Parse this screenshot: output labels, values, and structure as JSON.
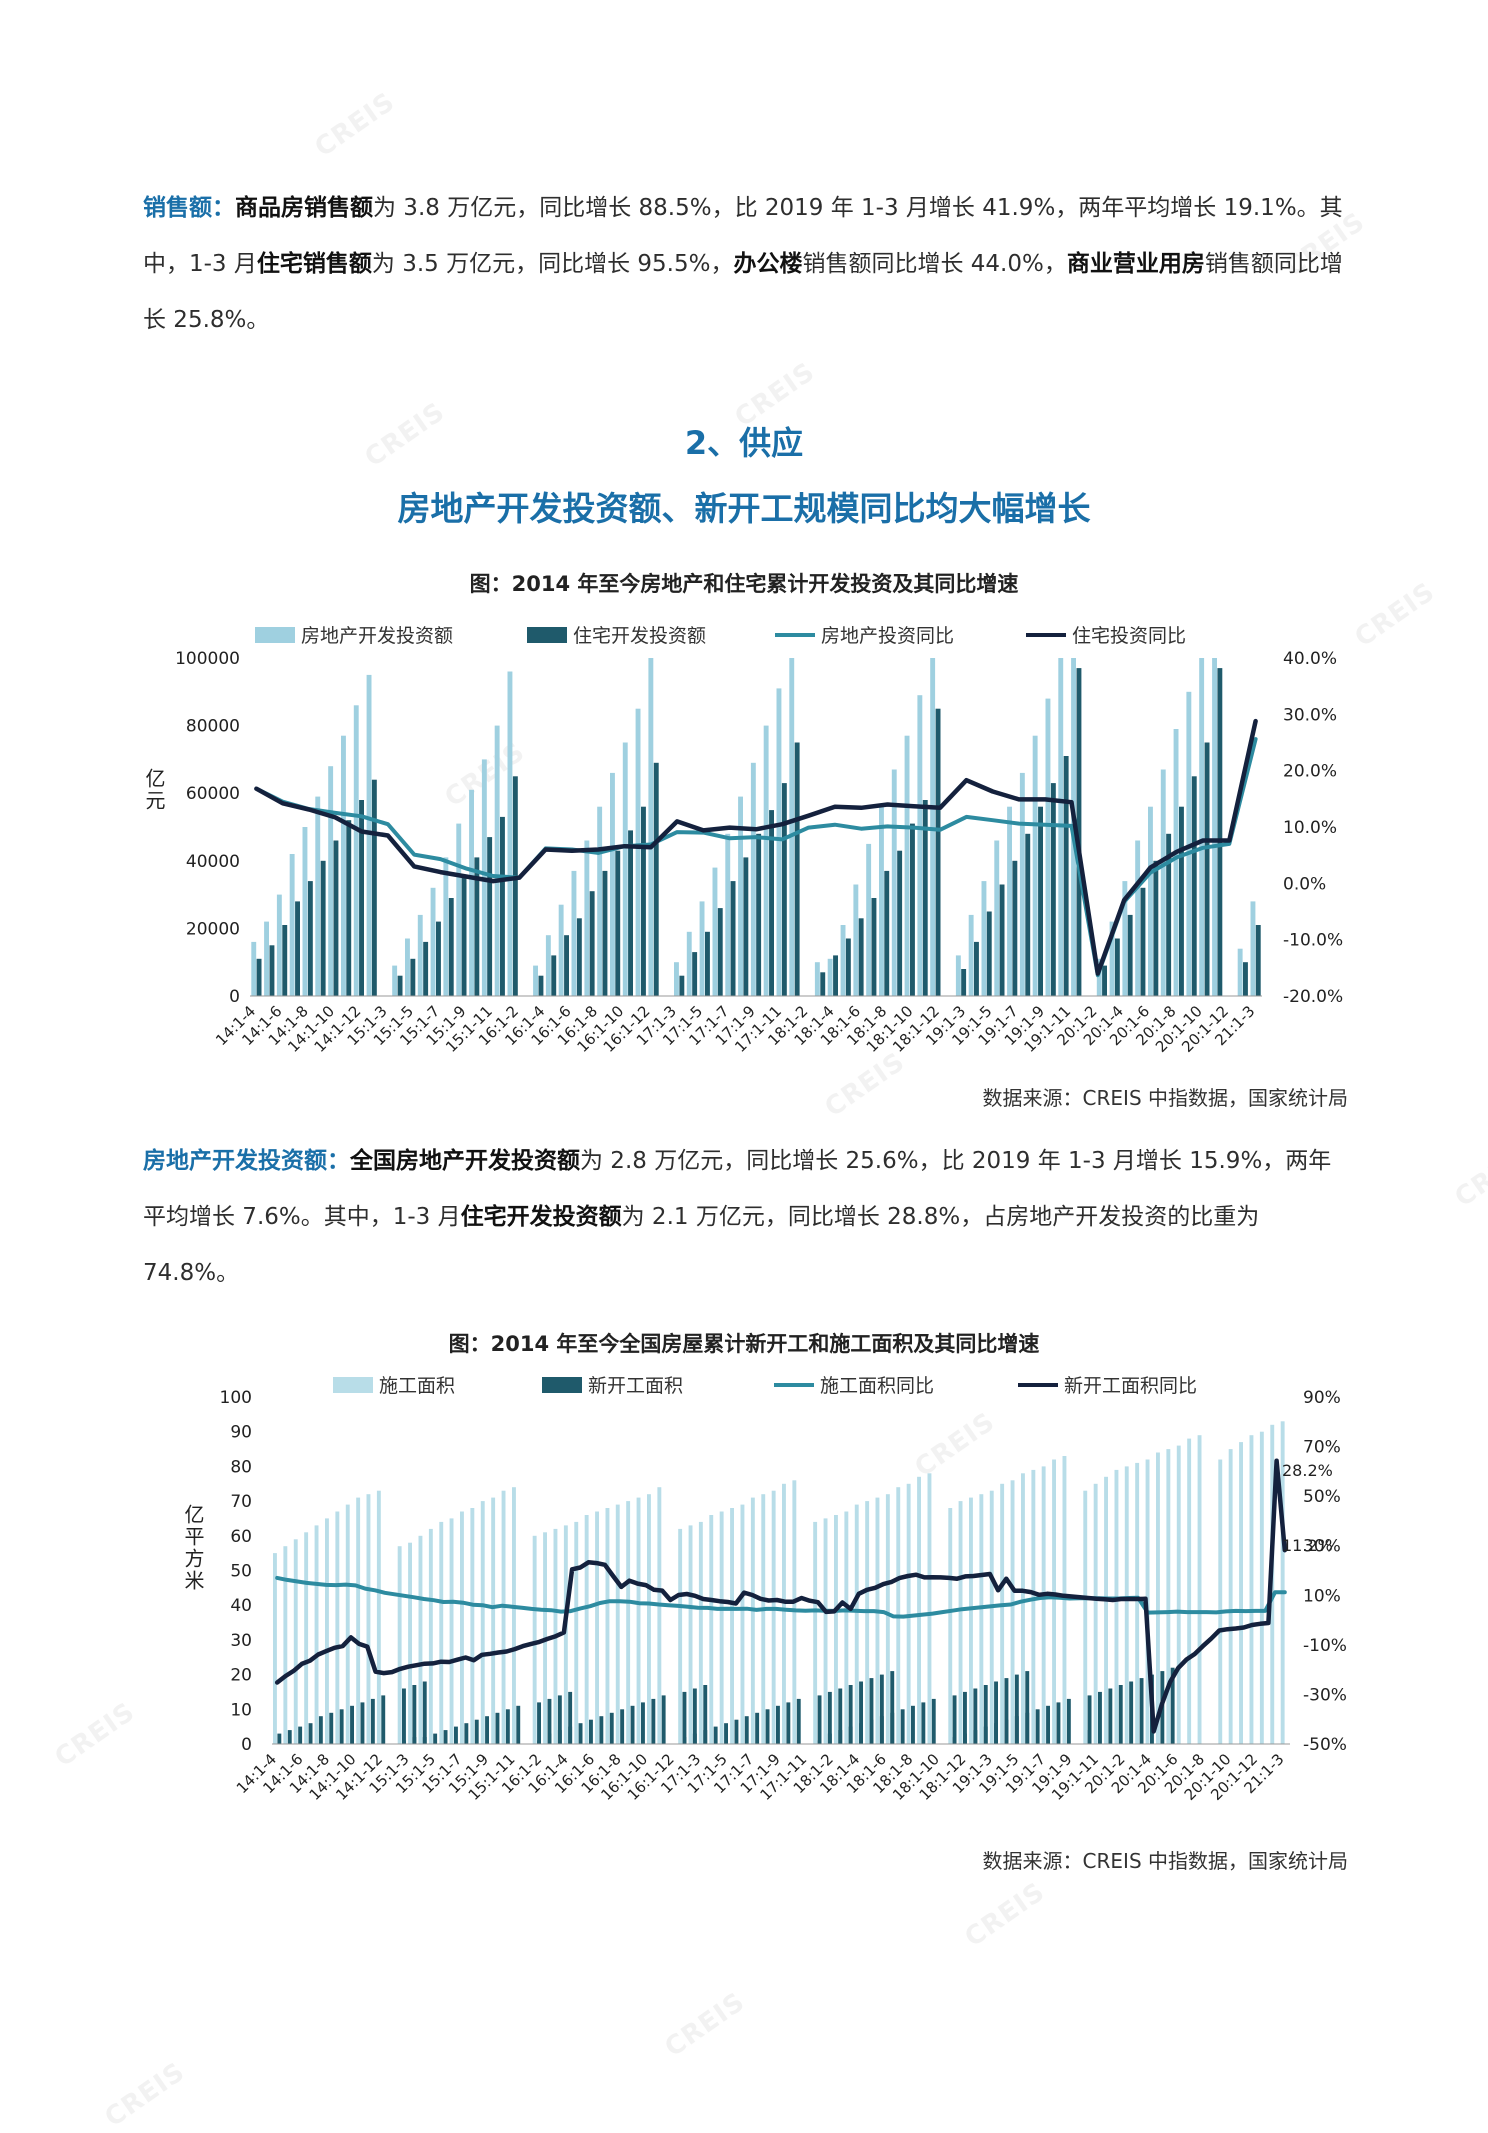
{
  "intro": {
    "lead": "销售额：",
    "t1": "商品房销售额",
    "t2": "为 3.8 万亿元，同比增长 88.5%，比 2019 年 1-3 月增长 41.9%，两年平均增长 19.1%。其中，1-3 月",
    "t3": "住宅销售额",
    "t4": "为 3.5 万亿元，同比增长 95.5%，",
    "t5": "办公楼",
    "t6": "销售额同比增长 44.0%，",
    "t7": "商业营业用房",
    "t8": "销售额同比增长 25.8%。"
  },
  "section": {
    "number": "2、供应",
    "headline": "房地产开发投资额、新开工规模同比均大幅增长"
  },
  "middle": {
    "lead": "房地产开发投资额：",
    "t1": "全国房地产开发投资额",
    "t2": "为 2.8 万亿元，同比增长 25.6%，比 2019 年 1-3 月增长 15.9%，两年平均增长 7.6%。其中，1-3 月",
    "t3": "住宅开发投资额",
    "t4": "为 2.1 万亿元，同比增长 28.8%，占房地产开发投资的比重为 74.8%。"
  },
  "watermark": "CREIS",
  "chart_data": [
    {
      "type": "bar",
      "title": "图：2014 年至今房地产和住宅累计开发投资及其同比增速",
      "source": "数据来源：CREIS 中指数据，国家统计局",
      "ylabel": "亿元",
      "ylim": [
        0,
        100000
      ],
      "y2lim": [
        -20,
        40
      ],
      "yticks": [
        "100000",
        "80000",
        "60000",
        "40000",
        "20000",
        "0"
      ],
      "y2ticks": [
        "40.0%",
        "30.0%",
        "20.0%",
        "10.0%",
        "0.0%",
        "-10.0%",
        "-20.0%"
      ],
      "xtick_labels": [
        "14:1-4",
        "14:1-6",
        "14:1-8",
        "14:1-10",
        "14:1-12",
        "15:1-3",
        "15:1-5",
        "15:1-7",
        "15:1-9",
        "15:1-11",
        "16:1-2",
        "16:1-4",
        "16:1-6",
        "16:1-8",
        "16:1-10",
        "16:1-12",
        "17:1-3",
        "17:1-5",
        "17:1-7",
        "17:1-9",
        "17:1-11",
        "18:1-2",
        "18:1-4",
        "18:1-6",
        "18:1-8",
        "18:1-10",
        "18:1-12",
        "19:1-3",
        "19:1-5",
        "19:1-7",
        "19:1-9",
        "19:1-11",
        "20:1-2",
        "20:1-4",
        "20:1-6",
        "20:1-8",
        "20:1-10",
        "20:1-12",
        "21:1-3"
      ],
      "grid": false,
      "legend_position": "top",
      "series": [
        {
          "name": "房地产开发投资额",
          "kind": "bar",
          "axis": "left",
          "color": "#9fd0e0",
          "years": [
            [
              16000,
              22000,
              30000,
              42000,
              50000,
              59000,
              68000,
              77000,
              86000,
              95000
            ],
            [
              9000,
              17000,
              24000,
              32000,
              41000,
              51000,
              61000,
              70000,
              80000,
              96000
            ],
            [
              9000,
              18000,
              27000,
              37000,
              46000,
              56000,
              66000,
              75000,
              85000,
              100000
            ],
            [
              10000,
              19000,
              28000,
              38000,
              48000,
              59000,
              69000,
              80000,
              91000,
              100000
            ],
            [
              10000,
              11000,
              21000,
              33000,
              45000,
              56000,
              67000,
              77000,
              89000,
              100000
            ],
            [
              12000,
              24000,
              34000,
              46000,
              56000,
              66000,
              77000,
              88000,
              100000,
              100000
            ],
            [
              11000,
              22000,
              34000,
              46000,
              56000,
              67000,
              79000,
              90000,
              100000,
              100000
            ],
            [
              14000,
              28000
            ]
          ]
        },
        {
          "name": "住宅开发投资额",
          "kind": "bar",
          "axis": "left",
          "color": "#1f5a6b",
          "years": [
            [
              11000,
              15000,
              21000,
              28000,
              34000,
              40000,
              46000,
              52000,
              58000,
              64000
            ],
            [
              6000,
              11000,
              16000,
              22000,
              29000,
              35000,
              41000,
              47000,
              53000,
              65000
            ],
            [
              6000,
              12000,
              18000,
              23000,
              31000,
              37000,
              43000,
              49000,
              56000,
              69000
            ],
            [
              6000,
              13000,
              19000,
              26000,
              34000,
              41000,
              48000,
              55000,
              63000,
              75000
            ],
            [
              7000,
              12000,
              17000,
              23000,
              29000,
              37000,
              43000,
              51000,
              58000,
              85000
            ],
            [
              8000,
              16000,
              25000,
              33000,
              40000,
              48000,
              56000,
              63000,
              71000,
              97000
            ],
            [
              9000,
              17000,
              24000,
              32000,
              40000,
              48000,
              56000,
              65000,
              75000,
              97000
            ],
            [
              10000,
              21000
            ]
          ]
        },
        {
          "name": "房地产投资同比",
          "kind": "line",
          "axis": "right",
          "color": "#2d8ba0",
          "x_index": [
            0,
            1,
            2,
            3,
            4,
            5,
            6,
            7,
            8,
            9,
            10,
            11,
            12,
            13,
            14,
            15,
            16,
            17,
            18,
            19,
            20,
            21,
            22,
            23,
            24,
            25,
            26,
            27,
            28,
            29,
            30,
            31,
            32,
            33,
            34,
            35,
            36,
            37,
            38
          ],
          "values": [
            16.8,
            14.5,
            13.2,
            12.5,
            11.9,
            10.5,
            5.1,
            4.3,
            2.6,
            1.3,
            1.0,
            6.2,
            6.0,
            5.4,
            6.6,
            6.9,
            9.1,
            9.0,
            8.0,
            8.2,
            7.8,
            9.9,
            10.4,
            9.7,
            10.1,
            9.9,
            9.5,
            11.8,
            11.2,
            10.6,
            10.4,
            10.2,
            -16.3,
            -3.3,
            1.9,
            4.6,
            6.3,
            7.0,
            25.6
          ]
        },
        {
          "name": "住宅投资同比",
          "kind": "line",
          "axis": "right",
          "color": "#14213d",
          "x_index": [
            0,
            1,
            2,
            3,
            4,
            5,
            6,
            7,
            8,
            9,
            10,
            11,
            12,
            13,
            14,
            15,
            16,
            17,
            18,
            19,
            20,
            21,
            22,
            23,
            24,
            25,
            26,
            27,
            28,
            29,
            30,
            31,
            32,
            33,
            34,
            35,
            36,
            37,
            38
          ],
          "values": [
            16.8,
            14.2,
            13.1,
            11.7,
            9.2,
            8.5,
            3.0,
            2.0,
            1.2,
            0.4,
            1.0,
            6.0,
            5.8,
            6.0,
            6.6,
            6.4,
            11.0,
            9.4,
            9.9,
            9.6,
            10.5,
            12.0,
            13.6,
            13.4,
            14.0,
            13.7,
            13.4,
            18.3,
            16.3,
            14.9,
            14.9,
            14.4,
            -16.0,
            -3.0,
            2.8,
            5.6,
            7.6,
            7.6,
            28.8
          ]
        }
      ]
    },
    {
      "type": "bar",
      "title": "图：2014 年至今全国房屋累计新开工和施工面积及其同比增速",
      "source": "数据来源：CREIS 中指数据，国家统计局",
      "ylabel": "亿平方米",
      "ylim": [
        0,
        100
      ],
      "y2lim": [
        -50,
        90
      ],
      "yticks": [
        "100",
        "90",
        "80",
        "70",
        "60",
        "50",
        "40",
        "30",
        "20",
        "10",
        "0"
      ],
      "y2ticks": [
        "90%",
        "70%",
        "50%",
        "30%",
        "10%",
        "-10%",
        "-30%",
        "-50%"
      ],
      "xtick_labels": [
        "14:1-4",
        "14:1-6",
        "14:1-8",
        "14:1-10",
        "14:1-12",
        "15:1-3",
        "15:1-5",
        "15:1-7",
        "15:1-9",
        "15:1-11",
        "16:1-2",
        "16:1-4",
        "16:1-6",
        "16:1-8",
        "16:1-10",
        "16:1-12",
        "17:1-3",
        "17:1-5",
        "17:1-7",
        "17:1-9",
        "17:1-11",
        "18:1-2",
        "18:1-4",
        "18:1-6",
        "18:1-8",
        "18:1-10",
        "18:1-12",
        "19:1-3",
        "19:1-5",
        "19:1-7",
        "19:1-9",
        "19:1-11",
        "20:1-2",
        "20:1-4",
        "20:1-6",
        "20:1-8",
        "20:1-10",
        "20:1-12",
        "21:1-3"
      ],
      "annotations": [
        "28.2%",
        "11.2%"
      ],
      "grid": false,
      "legend_position": "top",
      "series": [
        {
          "name": "施工面积",
          "kind": "bar",
          "axis": "left",
          "color": "#b8dde8",
          "years": [
            [
              55,
              57,
              59,
              61,
              63,
              65,
              67,
              69,
              71,
              72,
              73
            ],
            [
              57,
              58,
              60,
              62,
              64,
              65,
              67,
              68,
              70,
              71,
              73,
              74
            ],
            [
              60,
              61,
              62,
              63,
              64,
              66,
              67,
              68,
              69,
              70,
              71,
              72,
              74
            ],
            [
              62,
              63,
              64,
              66,
              67,
              68,
              69,
              71,
              72,
              73,
              75,
              76
            ],
            [
              64,
              65,
              66,
              67,
              69,
              70,
              71,
              72,
              74,
              75,
              77,
              78
            ],
            [
              68,
              70,
              71,
              72,
              73,
              75,
              76,
              78,
              79,
              80,
              82,
              83
            ],
            [
              73,
              75,
              77,
              79,
              80,
              81,
              82,
              84,
              85,
              86,
              88,
              89
            ],
            [
              82,
              85,
              87,
              89,
              90,
              92,
              93
            ]
          ]
        },
        {
          "name": "新开工面积",
          "kind": "bar",
          "axis": "left",
          "color": "#1f5a6b",
          "years": [
            [
              3,
              4,
              5,
              6,
              8,
              9,
              10,
              11,
              12,
              13,
              14,
              16,
              17,
              18
            ],
            [
              1,
              2,
              2,
              3,
              4,
              5,
              6,
              7,
              8,
              9,
              10,
              11,
              12,
              13,
              14,
              15
            ],
            [
              1,
              3,
              4,
              5,
              6,
              7,
              8,
              9,
              10,
              11,
              12,
              13,
              14,
              15,
              16,
              17
            ],
            [
              2,
              3,
              4,
              5,
              6,
              7,
              8,
              9,
              10,
              11,
              12,
              13,
              14,
              15,
              16,
              17,
              18,
              19,
              20,
              21
            ],
            [
              1,
              3,
              4,
              5,
              6,
              7,
              8,
              9,
              10,
              11,
              12,
              13,
              14,
              15,
              16,
              17,
              18,
              19,
              20,
              21
            ],
            [
              2,
              3,
              4,
              5,
              6,
              7,
              8,
              9,
              10,
              11,
              12,
              13,
              14,
              15,
              16,
              17,
              18,
              19,
              20,
              21,
              22
            ],
            [
              4
            ]
          ]
        },
        {
          "name": "施工面积同比",
          "kind": "line",
          "axis": "right",
          "color": "#2d8ba0",
          "values": [
            17.0,
            16.2,
            15.6,
            15.0,
            14.6,
            14.2,
            14.1,
            14.3,
            14.0,
            12.7,
            12.0,
            11.0,
            10.4,
            9.8,
            9.2,
            8.5,
            8.0,
            7.3,
            7.4,
            7.0,
            6.2,
            6.0,
            5.2,
            5.8,
            5.4,
            5.0,
            4.5,
            4.2,
            4.0,
            3.4,
            3.6,
            4.7,
            5.6,
            6.9,
            7.6,
            7.6,
            7.4,
            6.8,
            6.7,
            6.3,
            6.0,
            5.7,
            5.4,
            5.0,
            4.9,
            4.5,
            4.6,
            4.5,
            4.6,
            4.1,
            4.5,
            4.5,
            4.2,
            3.9,
            3.8,
            3.9,
            3.8,
            3.7,
            3.9,
            3.8,
            3.6,
            3.6,
            3.2,
            1.5,
            1.4,
            1.8,
            2.2,
            2.6,
            3.2,
            3.8,
            4.4,
            4.8,
            5.2,
            5.6,
            6.0,
            6.3,
            7.4,
            8.2,
            8.9,
            9.2,
            9.0,
            8.7,
            8.8,
            8.8,
            8.8,
            8.7,
            8.7,
            8.9,
            9.0,
            3.0,
            3.1,
            3.2,
            3.4,
            3.2,
            3.2,
            3.2,
            3.1,
            3.5,
            3.7,
            3.6,
            3.7,
            3.7,
            11.2,
            11.2
          ]
        },
        {
          "name": "新开工面积同比",
          "kind": "line",
          "axis": "right",
          "color": "#14213d",
          "values": [
            -25.2,
            -22.6,
            -20.5,
            -17.7,
            -16.4,
            -13.9,
            -12.5,
            -11.2,
            -10.5,
            -7.0,
            -9.6,
            -10.7,
            -20.8,
            -21.4,
            -21.0,
            -19.7,
            -18.8,
            -18.2,
            -17.6,
            -17.5,
            -16.8,
            -16.9,
            -16.0,
            -15.1,
            -16.2,
            -14.0,
            -13.6,
            -13.1,
            -12.7,
            -11.7,
            -10.5,
            -9.6,
            -8.8,
            -7.6,
            -6.5,
            -5.0,
            20.5,
            21.2,
            23.3,
            23.0,
            22.3,
            17.8,
            13.4,
            15.9,
            14.7,
            14.1,
            12.2,
            11.9,
            8.1,
            10.1,
            10.5,
            9.8,
            8.5,
            8.1,
            7.6,
            7.3,
            6.7,
            11.1,
            10.1,
            8.6,
            7.9,
            8.1,
            7.4,
            7.4,
            8.9,
            7.8,
            7.2,
            3.3,
            3.5,
            7.1,
            4.5,
            10.6,
            12.2,
            13.0,
            14.5,
            15.4,
            17.0,
            17.8,
            18.3,
            17.2,
            17.3,
            17.2,
            17.0,
            16.7,
            17.6,
            17.8,
            18.2,
            18.6,
            12.0,
            16.7,
            11.8,
            11.8,
            11.3,
            10.2,
            10.6,
            10.3,
            9.8,
            9.5,
            9.2,
            8.9,
            8.6,
            8.4,
            8.1,
            8.5,
            8.5,
            8.5,
            8.6,
            -44.9,
            -33.9,
            -25.0,
            -19.3,
            -15.9,
            -13.7,
            -10.5,
            -7.5,
            -4.2,
            -3.7,
            -3.4,
            -3.0,
            -2.0,
            -1.5,
            -1.2,
            64.3,
            28.2
          ]
        }
      ]
    }
  ]
}
